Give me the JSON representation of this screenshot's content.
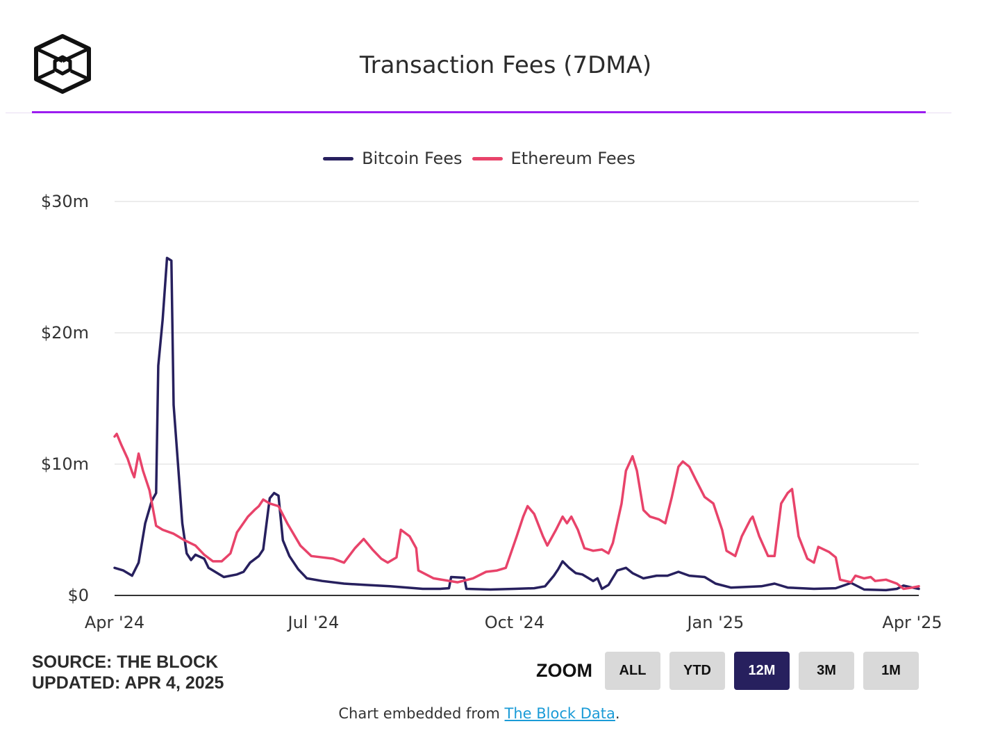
{
  "header": {
    "title": "Transaction Fees (7DMA)",
    "accent_color": "#9b1cf0"
  },
  "legend": [
    {
      "label": "Bitcoin Fees",
      "color": "#27205e"
    },
    {
      "label": "Ethereum Fees",
      "color": "#e8436a"
    }
  ],
  "footer": {
    "source": "SOURCE: THE BLOCK",
    "updated": "UPDATED: APR 4, 2025",
    "embed_prefix": "Chart embedded from ",
    "embed_link": "The Block Data",
    "embed_suffix": "."
  },
  "zoom": {
    "label": "ZOOM",
    "buttons": [
      {
        "label": "ALL",
        "active": false
      },
      {
        "label": "YTD",
        "active": false
      },
      {
        "label": "12M",
        "active": true
      },
      {
        "label": "3M",
        "active": false
      },
      {
        "label": "1M",
        "active": false
      }
    ]
  },
  "chart_data": {
    "type": "line",
    "title": "Transaction Fees (7DMA)",
    "y_unit": "USD",
    "ylim": [
      0,
      30000000
    ],
    "y_ticks": [
      {
        "value": 0,
        "label": "$0"
      },
      {
        "value": 10000000,
        "label": "$10m"
      },
      {
        "value": 20000000,
        "label": "$20m"
      },
      {
        "value": 30000000,
        "label": "$30m"
      }
    ],
    "x_ticks": [
      {
        "date": "2024-04-01",
        "label": "Apr '24"
      },
      {
        "date": "2024-07-01",
        "label": "Jul '24"
      },
      {
        "date": "2024-10-01",
        "label": "Oct '24"
      },
      {
        "date": "2025-01-01",
        "label": "Jan '25"
      },
      {
        "date": "2025-04-01",
        "label": "Apr '25"
      }
    ],
    "xlim": [
      "2024-04-01",
      "2025-04-04"
    ],
    "grid": true,
    "legend_position": "top-center",
    "series": [
      {
        "name": "Bitcoin Fees",
        "color": "#27205e",
        "points": [
          [
            "2024-04-01",
            2.1
          ],
          [
            "2024-04-05",
            1.9
          ],
          [
            "2024-04-09",
            1.5
          ],
          [
            "2024-04-12",
            2.5
          ],
          [
            "2024-04-15",
            5.5
          ],
          [
            "2024-04-18",
            7.2
          ],
          [
            "2024-04-20",
            7.8
          ],
          [
            "2024-04-21",
            17.5
          ],
          [
            "2024-04-23",
            21.0
          ],
          [
            "2024-04-25",
            25.7
          ],
          [
            "2024-04-27",
            25.5
          ],
          [
            "2024-04-28",
            14.5
          ],
          [
            "2024-04-30",
            10.0
          ],
          [
            "2024-05-02",
            5.5
          ],
          [
            "2024-05-04",
            3.2
          ],
          [
            "2024-05-06",
            2.7
          ],
          [
            "2024-05-08",
            3.1
          ],
          [
            "2024-05-12",
            2.8
          ],
          [
            "2024-05-14",
            2.1
          ],
          [
            "2024-05-19",
            1.6
          ],
          [
            "2024-05-21",
            1.4
          ],
          [
            "2024-05-27",
            1.6
          ],
          [
            "2024-05-30",
            1.8
          ],
          [
            "2024-06-02",
            2.5
          ],
          [
            "2024-06-06",
            3.0
          ],
          [
            "2024-06-08",
            3.5
          ],
          [
            "2024-06-11",
            7.4
          ],
          [
            "2024-06-13",
            7.8
          ],
          [
            "2024-06-15",
            7.6
          ],
          [
            "2024-06-17",
            4.2
          ],
          [
            "2024-06-20",
            3.0
          ],
          [
            "2024-06-24",
            2.0
          ],
          [
            "2024-06-28",
            1.3
          ],
          [
            "2024-07-05",
            1.1
          ],
          [
            "2024-07-15",
            0.9
          ],
          [
            "2024-07-25",
            0.8
          ],
          [
            "2024-08-05",
            0.7
          ],
          [
            "2024-08-20",
            0.5
          ],
          [
            "2024-08-28",
            0.5
          ],
          [
            "2024-09-01",
            0.55
          ],
          [
            "2024-09-02",
            1.4
          ],
          [
            "2024-09-08",
            1.35
          ],
          [
            "2024-09-09",
            0.5
          ],
          [
            "2024-09-20",
            0.45
          ],
          [
            "2024-10-01",
            0.5
          ],
          [
            "2024-10-10",
            0.55
          ],
          [
            "2024-10-15",
            0.7
          ],
          [
            "2024-10-19",
            1.5
          ],
          [
            "2024-10-21",
            2.0
          ],
          [
            "2024-10-23",
            2.6
          ],
          [
            "2024-10-26",
            2.1
          ],
          [
            "2024-10-29",
            1.7
          ],
          [
            "2024-11-01",
            1.6
          ],
          [
            "2024-11-04",
            1.3
          ],
          [
            "2024-11-06",
            1.1
          ],
          [
            "2024-11-08",
            1.3
          ],
          [
            "2024-11-10",
            0.5
          ],
          [
            "2024-11-13",
            0.8
          ],
          [
            "2024-11-17",
            1.9
          ],
          [
            "2024-11-21",
            2.1
          ],
          [
            "2024-11-24",
            1.7
          ],
          [
            "2024-11-29",
            1.3
          ],
          [
            "2024-12-05",
            1.5
          ],
          [
            "2024-12-10",
            1.5
          ],
          [
            "2024-12-15",
            1.8
          ],
          [
            "2024-12-20",
            1.5
          ],
          [
            "2024-12-27",
            1.4
          ],
          [
            "2025-01-01",
            0.9
          ],
          [
            "2025-01-08",
            0.6
          ],
          [
            "2025-01-15",
            0.65
          ],
          [
            "2025-01-22",
            0.7
          ],
          [
            "2025-01-28",
            0.9
          ],
          [
            "2025-02-03",
            0.6
          ],
          [
            "2025-02-15",
            0.5
          ],
          [
            "2025-02-25",
            0.55
          ],
          [
            "2025-03-04",
            0.95
          ],
          [
            "2025-03-10",
            0.45
          ],
          [
            "2025-03-20",
            0.4
          ],
          [
            "2025-03-25",
            0.5
          ],
          [
            "2025-03-28",
            0.75
          ],
          [
            "2025-04-01",
            0.6
          ],
          [
            "2025-04-04",
            0.5
          ]
        ]
      },
      {
        "name": "Ethereum Fees",
        "color": "#e8436a",
        "points": [
          [
            "2024-04-01",
            12.1
          ],
          [
            "2024-04-02",
            12.3
          ],
          [
            "2024-04-04",
            11.5
          ],
          [
            "2024-04-07",
            10.4
          ],
          [
            "2024-04-09",
            9.4
          ],
          [
            "2024-04-10",
            9.0
          ],
          [
            "2024-04-12",
            10.8
          ],
          [
            "2024-04-14",
            9.5
          ],
          [
            "2024-04-17",
            8.0
          ],
          [
            "2024-04-20",
            5.3
          ],
          [
            "2024-04-23",
            5.0
          ],
          [
            "2024-04-28",
            4.7
          ],
          [
            "2024-05-03",
            4.2
          ],
          [
            "2024-05-08",
            3.8
          ],
          [
            "2024-05-12",
            3.1
          ],
          [
            "2024-05-16",
            2.6
          ],
          [
            "2024-05-20",
            2.6
          ],
          [
            "2024-05-24",
            3.2
          ],
          [
            "2024-05-27",
            4.8
          ],
          [
            "2024-06-01",
            6.0
          ],
          [
            "2024-06-04",
            6.5
          ],
          [
            "2024-06-06",
            6.8
          ],
          [
            "2024-06-08",
            7.3
          ],
          [
            "2024-06-11",
            7.0
          ],
          [
            "2024-06-15",
            6.8
          ],
          [
            "2024-06-19",
            5.5
          ],
          [
            "2024-06-25",
            3.8
          ],
          [
            "2024-06-30",
            3.0
          ],
          [
            "2024-07-05",
            2.9
          ],
          [
            "2024-07-10",
            2.8
          ],
          [
            "2024-07-15",
            2.5
          ],
          [
            "2024-07-20",
            3.6
          ],
          [
            "2024-07-24",
            4.3
          ],
          [
            "2024-07-28",
            3.5
          ],
          [
            "2024-08-01",
            2.8
          ],
          [
            "2024-08-04",
            2.5
          ],
          [
            "2024-08-08",
            2.9
          ],
          [
            "2024-08-10",
            5.0
          ],
          [
            "2024-08-14",
            4.5
          ],
          [
            "2024-08-17",
            3.6
          ],
          [
            "2024-08-18",
            1.9
          ],
          [
            "2024-08-25",
            1.3
          ],
          [
            "2024-09-05",
            1.0
          ],
          [
            "2024-09-12",
            1.3
          ],
          [
            "2024-09-18",
            1.8
          ],
          [
            "2024-09-23",
            1.9
          ],
          [
            "2024-09-27",
            2.1
          ],
          [
            "2024-10-02",
            4.5
          ],
          [
            "2024-10-05",
            6.0
          ],
          [
            "2024-10-07",
            6.8
          ],
          [
            "2024-10-10",
            6.2
          ],
          [
            "2024-10-14",
            4.5
          ],
          [
            "2024-10-16",
            3.8
          ],
          [
            "2024-10-20",
            5.0
          ],
          [
            "2024-10-23",
            6.0
          ],
          [
            "2024-10-25",
            5.5
          ],
          [
            "2024-10-27",
            6.0
          ],
          [
            "2024-10-30",
            5.0
          ],
          [
            "2024-11-02",
            3.6
          ],
          [
            "2024-11-06",
            3.4
          ],
          [
            "2024-11-10",
            3.5
          ],
          [
            "2024-11-13",
            3.2
          ],
          [
            "2024-11-15",
            4.0
          ],
          [
            "2024-11-19",
            7.0
          ],
          [
            "2024-11-21",
            9.5
          ],
          [
            "2024-11-24",
            10.6
          ],
          [
            "2024-11-26",
            9.5
          ],
          [
            "2024-11-29",
            6.5
          ],
          [
            "2024-12-02",
            6.0
          ],
          [
            "2024-12-06",
            5.8
          ],
          [
            "2024-12-09",
            5.5
          ],
          [
            "2024-12-12",
            7.5
          ],
          [
            "2024-12-15",
            9.8
          ],
          [
            "2024-12-17",
            10.2
          ],
          [
            "2024-12-20",
            9.8
          ],
          [
            "2024-12-23",
            8.8
          ],
          [
            "2024-12-27",
            7.5
          ],
          [
            "2024-12-31",
            7.0
          ],
          [
            "2025-01-04",
            5.0
          ],
          [
            "2025-01-06",
            3.4
          ],
          [
            "2025-01-10",
            3.0
          ],
          [
            "2025-01-13",
            4.5
          ],
          [
            "2025-01-17",
            5.8
          ],
          [
            "2025-01-18",
            6.0
          ],
          [
            "2025-01-21",
            4.5
          ],
          [
            "2025-01-25",
            3.0
          ],
          [
            "2025-01-28",
            3.0
          ],
          [
            "2025-01-31",
            7.0
          ],
          [
            "2025-02-03",
            7.8
          ],
          [
            "2025-02-05",
            8.1
          ],
          [
            "2025-02-08",
            4.5
          ],
          [
            "2025-02-12",
            2.8
          ],
          [
            "2025-02-15",
            2.5
          ],
          [
            "2025-02-17",
            3.7
          ],
          [
            "2025-02-22",
            3.3
          ],
          [
            "2025-02-25",
            2.9
          ],
          [
            "2025-02-27",
            1.2
          ],
          [
            "2025-03-04",
            1.0
          ],
          [
            "2025-03-06",
            1.5
          ],
          [
            "2025-03-10",
            1.3
          ],
          [
            "2025-03-13",
            1.4
          ],
          [
            "2025-03-15",
            1.1
          ],
          [
            "2025-03-20",
            1.2
          ],
          [
            "2025-03-25",
            0.9
          ],
          [
            "2025-03-28",
            0.5
          ],
          [
            "2025-04-01",
            0.6
          ],
          [
            "2025-04-04",
            0.7
          ]
        ]
      }
    ]
  }
}
